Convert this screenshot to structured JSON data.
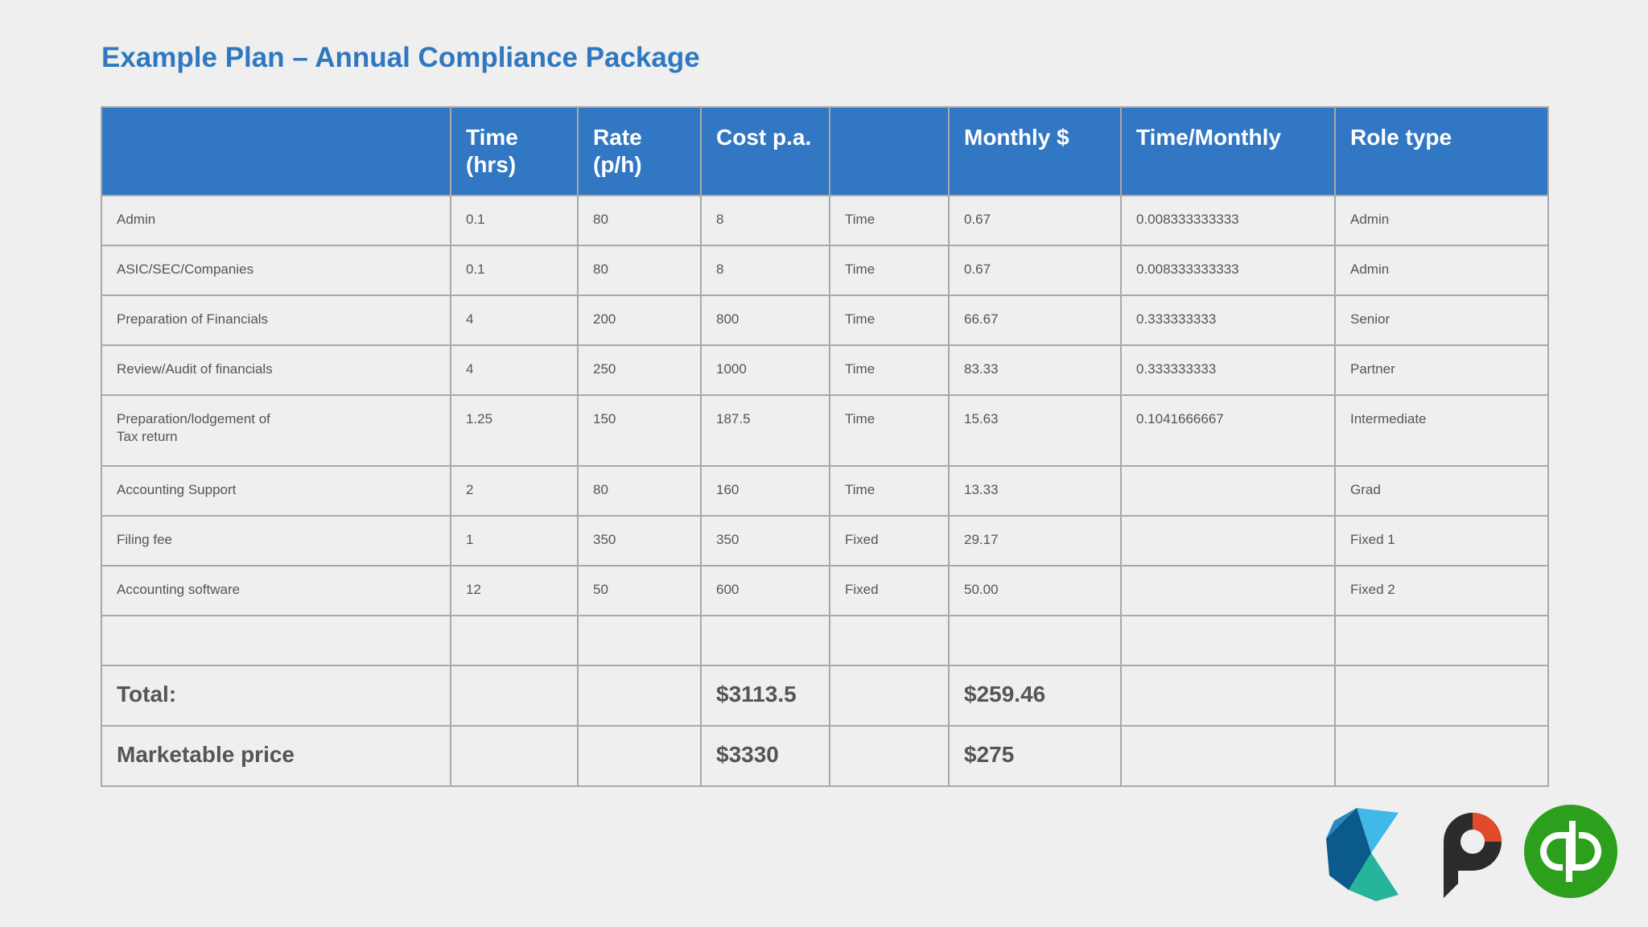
{
  "title": "Example Plan – Annual Compliance Package",
  "table": {
    "headers": [
      "",
      "Time\n(hrs)",
      "Rate\n(p/h)",
      "Cost p.a.",
      "",
      "Monthly $",
      "Time/Monthly",
      "Role type"
    ],
    "rows": [
      [
        "Admin",
        "0.1",
        "80",
        "8",
        "Time",
        "0.67",
        "0.008333333333",
        "Admin"
      ],
      [
        "ASIC/SEC/Companies",
        "0.1",
        "80",
        "8",
        "Time",
        "0.67",
        "0.008333333333",
        "Admin"
      ],
      [
        "Preparation of Financials",
        "4",
        "200",
        "800",
        "Time",
        "66.67",
        "0.333333333",
        "Senior"
      ],
      [
        "Review/Audit of financials",
        "4",
        "250",
        "1000",
        "Time",
        "83.33",
        "0.333333333",
        "Partner"
      ],
      [
        "Preparation/lodgement of\nTax return",
        "1.25",
        "150",
        "187.5",
        "Time",
        "15.63",
        "0.1041666667",
        "Intermediate"
      ],
      [
        "Accounting Support",
        "2",
        "80",
        "160",
        "Time",
        "13.33",
        "",
        "Grad"
      ],
      [
        "Filing fee",
        "1",
        "350",
        "350",
        "Fixed",
        "29.17",
        "",
        "Fixed 1"
      ],
      [
        "Accounting software",
        "12",
        "50",
        "600",
        "Fixed",
        "50.00",
        "",
        "Fixed 2"
      ],
      [
        "",
        "",
        "",
        "",
        "",
        "",
        "",
        ""
      ]
    ],
    "summary": [
      [
        "Total:",
        "",
        "",
        "$3113.5",
        "",
        "$259.46",
        "",
        ""
      ],
      [
        "Marketable price",
        "",
        "",
        "$3330",
        "",
        "$275",
        "",
        ""
      ]
    ]
  },
  "logos": [
    "xero-style-logo",
    "practice-software-logo",
    "quickbooks-logo"
  ],
  "colors": {
    "accent": "#2f78c0",
    "header_bg": "#3277c4",
    "border": "#a9a9a9",
    "background": "#efefef",
    "text": "#555555"
  }
}
